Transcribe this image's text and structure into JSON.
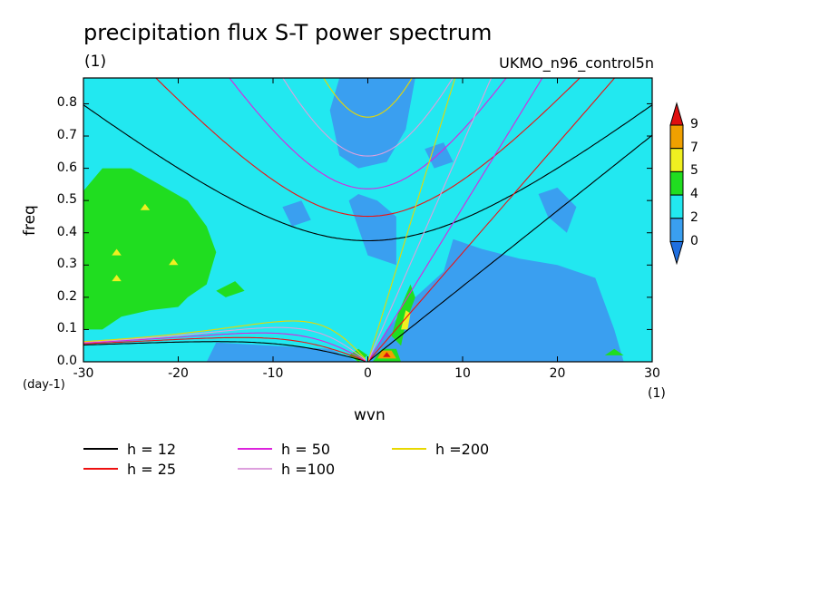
{
  "chart_data": {
    "type": "heatmap",
    "title": "precipitation flux S-T power spectrum",
    "subtitle_left": "(1)",
    "subtitle_right": "UKMO_n96_control5n",
    "xlabel": "wvn",
    "x_unit": "(1)",
    "ylabel": "freq",
    "y_unit": "(day-1)",
    "xlim": [
      -30,
      30
    ],
    "ylim": [
      0,
      0.88
    ],
    "x_ticks": [
      "-30",
      "-20",
      "-10",
      "0",
      "10",
      "20",
      "30"
    ],
    "y_ticks": [
      "0.0",
      "0.1",
      "0.2",
      "0.3",
      "0.4",
      "0.5",
      "0.6",
      "0.7",
      "0.8"
    ],
    "colorbar": {
      "levels": [
        "0",
        "2",
        "4",
        "5",
        "7",
        "9"
      ],
      "colors": [
        "#1f6fe0",
        "#3a9ff0",
        "#22e8f0",
        "#20dd20",
        "#f0f020",
        "#f0a000",
        "#e01010"
      ]
    },
    "regions": [
      {
        "level": "4-5",
        "desc": "green",
        "x": [
          -30,
          -16
        ],
        "y": [
          0.1,
          0.6
        ]
      },
      {
        "level": "0-2",
        "desc": "blue",
        "x": [
          0,
          28
        ],
        "y": [
          0.0,
          0.45
        ]
      },
      {
        "level": "0-2",
        "desc": "blue",
        "x": [
          -5,
          5
        ],
        "y": [
          0.55,
          0.88
        ]
      }
    ],
    "series": [
      {
        "name": "h = 12",
        "color": "#000000"
      },
      {
        "name": "h = 25",
        "color": "#ee1111"
      },
      {
        "name": "h = 50",
        "color": "#dd22dd"
      },
      {
        "name": "h =100",
        "color": "#dda0dd"
      },
      {
        "name": "h =200",
        "color": "#e8d800"
      }
    ],
    "equivalent_depths_m": [
      12,
      25,
      50,
      100,
      200
    ]
  }
}
